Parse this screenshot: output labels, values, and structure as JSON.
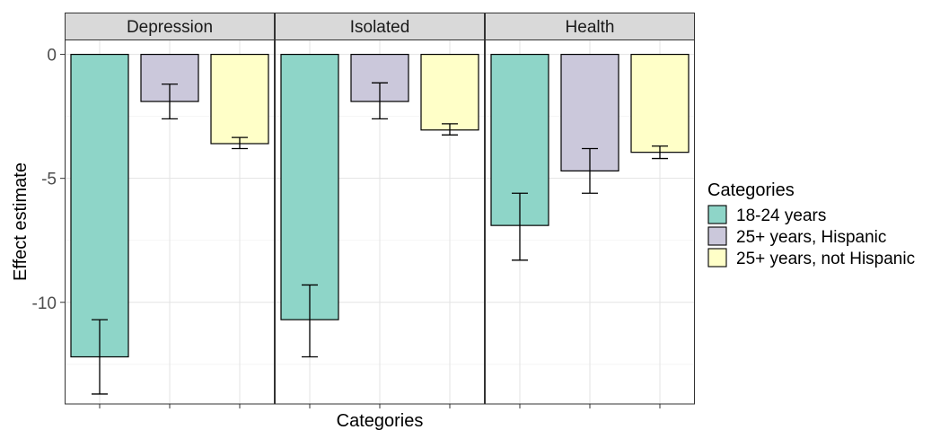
{
  "chart_data": {
    "type": "bar",
    "facet_by": "outcome",
    "panels": [
      {
        "title": "Depression",
        "series": [
          {
            "category": "18-24 years",
            "value": -12.2,
            "ci": [
              -13.7,
              -10.7
            ]
          },
          {
            "category": "25+ years, Hispanic",
            "value": -1.9,
            "ci": [
              -2.6,
              -1.2
            ]
          },
          {
            "category": "25+ years, not Hispanic",
            "value": -3.6,
            "ci": [
              -3.8,
              -3.35
            ]
          }
        ]
      },
      {
        "title": "Isolated",
        "series": [
          {
            "category": "18-24 years",
            "value": -10.7,
            "ci": [
              -12.2,
              -9.3
            ]
          },
          {
            "category": "25+ years, Hispanic",
            "value": -1.9,
            "ci": [
              -2.6,
              -1.15
            ]
          },
          {
            "category": "25+ years, not Hispanic",
            "value": -3.05,
            "ci": [
              -3.25,
              -2.8
            ]
          }
        ]
      },
      {
        "title": "Health",
        "series": [
          {
            "category": "18-24 years",
            "value": -6.9,
            "ci": [
              -8.3,
              -5.6
            ]
          },
          {
            "category": "25+ years, Hispanic",
            "value": -4.7,
            "ci": [
              -5.6,
              -3.8
            ]
          },
          {
            "category": "25+ years, not Hispanic",
            "value": -3.95,
            "ci": [
              -4.2,
              -3.7
            ]
          }
        ]
      }
    ],
    "xlabel": "Categories",
    "ylabel": "Effect estimate",
    "ylim": [
      -14.1,
      0.6
    ],
    "yticks": [
      0,
      -5,
      -10
    ],
    "grid": true,
    "legend": {
      "title": "Categories",
      "position": "right",
      "entries": [
        {
          "label": "18-24 years",
          "color": "#8ED5C8"
        },
        {
          "label": "25+ years, Hispanic",
          "color": "#CBC8DB"
        },
        {
          "label": "25+ years, not Hispanic",
          "color": "#FFFFC8"
        }
      ]
    }
  }
}
